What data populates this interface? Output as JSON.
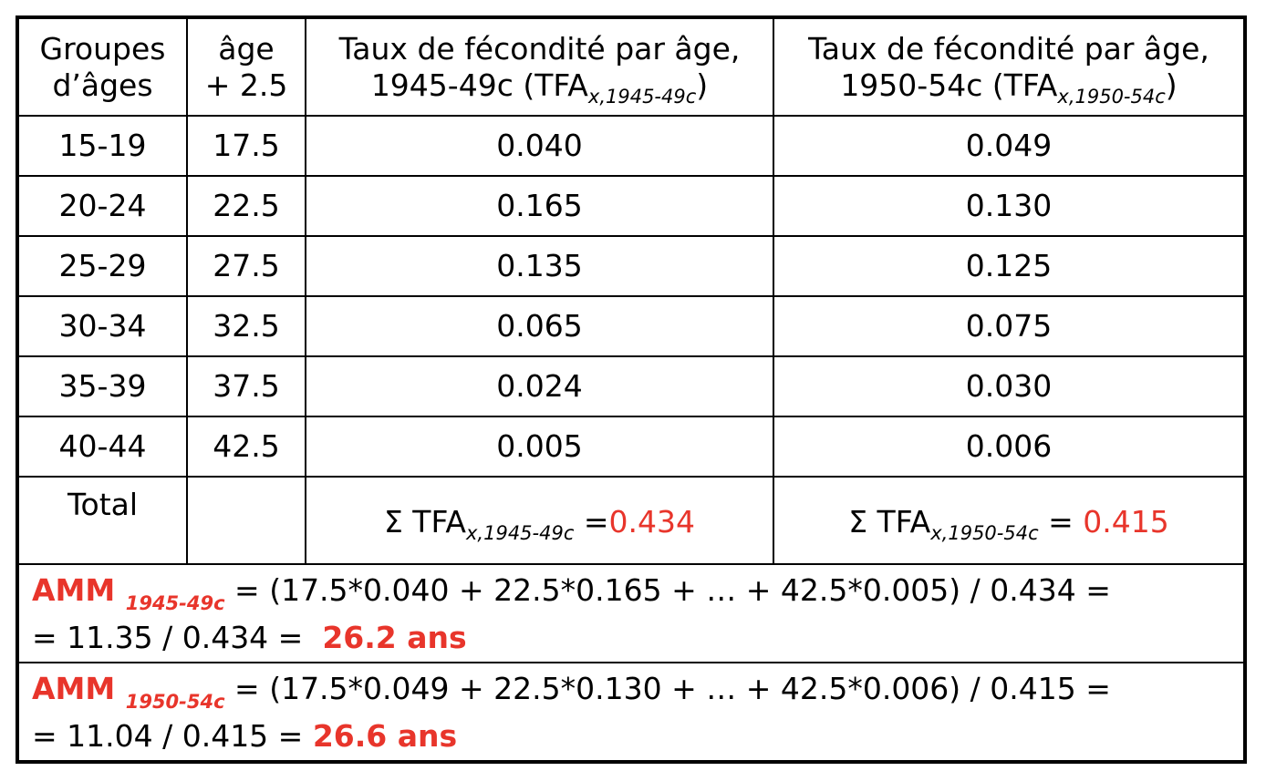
{
  "headers": {
    "col1": [
      "Groupes",
      "d’âges"
    ],
    "col2": [
      "âge",
      "+ 2.5"
    ],
    "col3": {
      "line1": "Taux de fécondité par âge,",
      "line2_pre": "1945-49c (TFA",
      "line2_sub": "x,1945-49c",
      "line2_post": ")"
    },
    "col4": {
      "line1": "Taux de fécondité par âge,",
      "line2_pre": "1950-54c (TFA",
      "line2_sub": "x,1950-54c",
      "line2_post": ")"
    }
  },
  "rows": [
    {
      "group": "15-19",
      "age": "17.5",
      "tfa1": "0.040",
      "tfa2": "0.049"
    },
    {
      "group": "20-24",
      "age": "22.5",
      "tfa1": "0.165",
      "tfa2": "0.130"
    },
    {
      "group": "25-29",
      "age": "27.5",
      "tfa1": "0.135",
      "tfa2": "0.125"
    },
    {
      "group": "30-34",
      "age": "32.5",
      "tfa1": "0.065",
      "tfa2": "0.075"
    },
    {
      "group": "35-39",
      "age": "37.5",
      "tfa1": "0.024",
      "tfa2": "0.030"
    },
    {
      "group": "40-44",
      "age": "42.5",
      "tfa1": "0.005",
      "tfa2": "0.006"
    }
  ],
  "total": {
    "label": "Total",
    "sum1": {
      "pre": "Σ TFA",
      "sub": "x,1945-49c",
      "eq": " =",
      "value": "0.434"
    },
    "sum2": {
      "pre": "Σ TFA",
      "sub": "x,1950-54c",
      "eq": " = ",
      "value": "0.415"
    }
  },
  "amm1": {
    "label": "AMM ",
    "sub": "1945-49c",
    "formula": " = (17.5*0.040 + 22.5*0.165 + … + 42.5*0.005) / 0.434 =",
    "line2": "= 11.35 / 0.434 =  ",
    "result": "26.2 ans"
  },
  "amm2": {
    "label": "AMM ",
    "sub": "1950-54c",
    "formula": " = (17.5*0.049 + 22.5*0.130 + … + 42.5*0.006) / 0.415 =",
    "line2": "= 11.04 / 0.415 = ",
    "result": "26.6 ans"
  },
  "colors": {
    "accent": "#e8352b",
    "text": "#000000",
    "border": "#000000"
  }
}
